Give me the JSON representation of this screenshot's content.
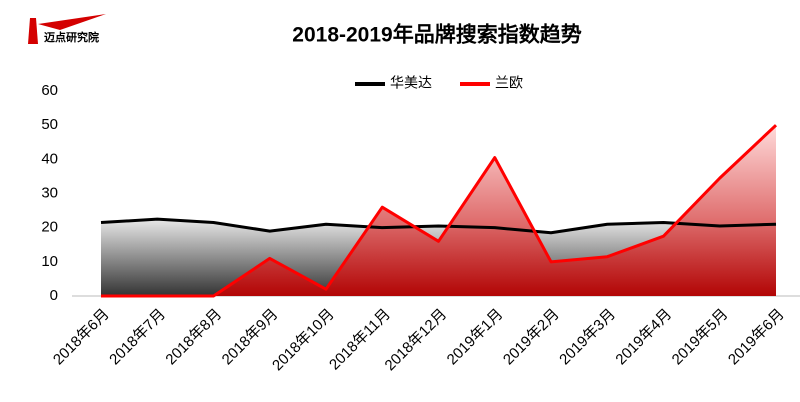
{
  "logo": "迈点研究院",
  "chart_data": {
    "type": "area-line",
    "title": "2018-2019年品牌搜索指数趋势",
    "categories": [
      "2018年6月",
      "2018年7月",
      "2018年8月",
      "2018年9月",
      "2018年10月",
      "2018年11月",
      "2018年12月",
      "2019年1月",
      "2019年2月",
      "2019年3月",
      "2019年4月",
      "2019年5月",
      "2019年6月"
    ],
    "series": [
      {
        "name": "华美达",
        "color": "#000000",
        "values": [
          21.5,
          22.5,
          21.5,
          19,
          21,
          20,
          20.5,
          20,
          18.5,
          21,
          21.5,
          20.5,
          21
        ]
      },
      {
        "name": "兰欧",
        "color": "#ff0000",
        "values": [
          0,
          0,
          0,
          11,
          2,
          26,
          16,
          40.5,
          10,
          11.5,
          17.5,
          34.5,
          50
        ]
      }
    ],
    "ylim": [
      0,
      60
    ],
    "yticks": [
      0,
      10,
      20,
      30,
      40,
      50,
      60
    ],
    "legend": "top"
  }
}
